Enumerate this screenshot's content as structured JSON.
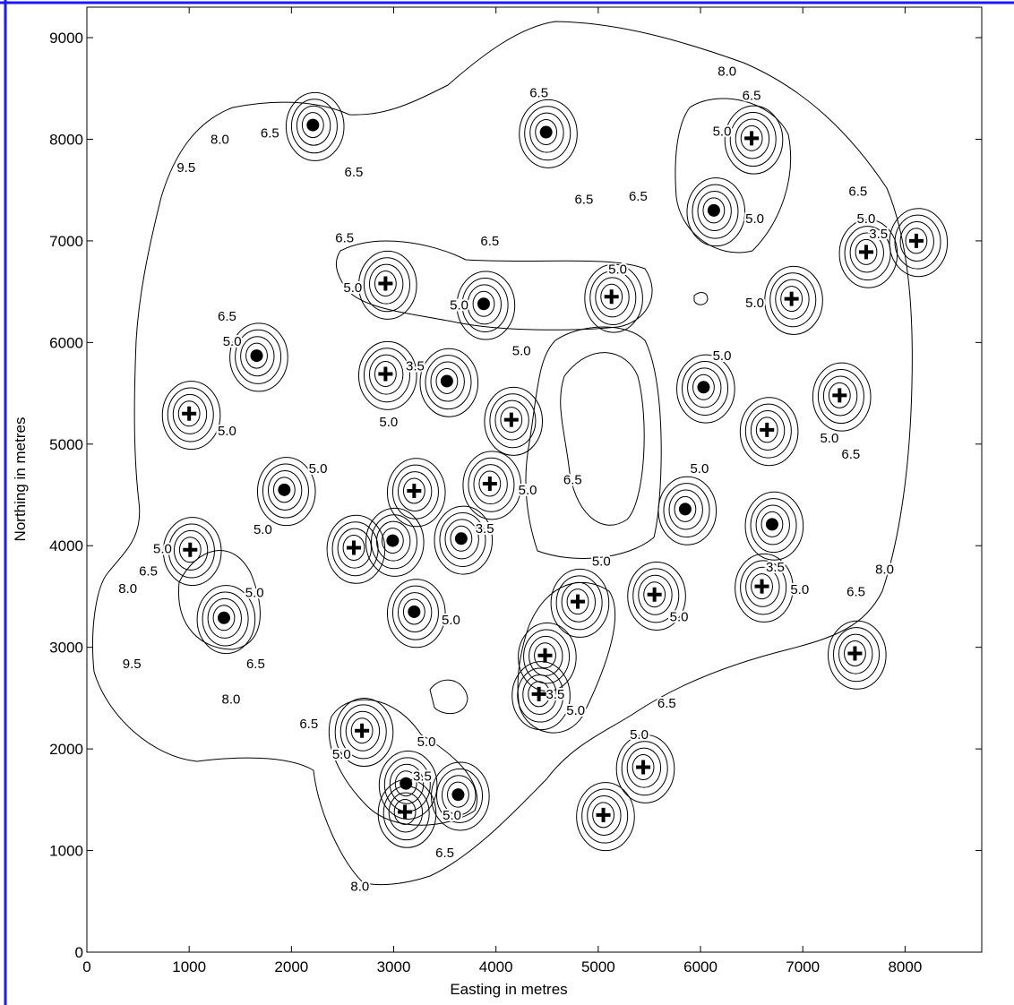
{
  "chart_data": {
    "type": "scatter",
    "xlabel": "Easting in metres",
    "ylabel": "Northing in metres",
    "xlim": [
      0,
      8750
    ],
    "ylim": [
      0,
      9300
    ],
    "xticks": [
      0,
      1000,
      2000,
      3000,
      4000,
      5000,
      6000,
      7000,
      8000
    ],
    "yticks": [
      0,
      1000,
      2000,
      3000,
      4000,
      5000,
      6000,
      7000,
      8000,
      9000
    ],
    "series": [
      {
        "marker": "circle",
        "color": "#000000",
        "x": [
          2210,
          4490,
          6130,
          3880,
          1660,
          3520,
          6030,
          1930,
          3660,
          6700,
          5850,
          2990,
          3200,
          1340,
          3120,
          3630
        ],
        "values": [
          8140,
          8070,
          7300,
          6380,
          5870,
          5620,
          5560,
          4550,
          4070,
          4210,
          4360,
          4050,
          3350,
          3290,
          1660,
          1550
        ]
      },
      {
        "marker": "cross",
        "color": "#000000",
        "x": [
          6500,
          7620,
          2920,
          5130,
          6890,
          2920,
          7360,
          1000,
          4150,
          6650,
          3940,
          3200,
          1010,
          2610,
          6600,
          4800,
          5550,
          4480,
          4420,
          8110,
          7510,
          2690,
          5440,
          5050,
          3110
        ],
        "values": [
          8010,
          6890,
          6580,
          6450,
          6430,
          5690,
          5480,
          5300,
          5240,
          5140,
          4610,
          4540,
          3960,
          3980,
          3600,
          3450,
          3520,
          2920,
          2540,
          7000,
          2940,
          2180,
          1820,
          1350,
          1380
        ]
      }
    ],
    "contour_labels": [
      {
        "label": "8.0",
        "x": 6260,
        "y": 8670
      },
      {
        "label": "6.5",
        "x": 4420,
        "y": 8460
      },
      {
        "label": "6.5",
        "x": 6500,
        "y": 8430
      },
      {
        "label": "5.0",
        "x": 6210,
        "y": 8080
      },
      {
        "label": "8.0",
        "x": 1300,
        "y": 8000
      },
      {
        "label": "6.5",
        "x": 1790,
        "y": 8060
      },
      {
        "label": "9.5",
        "x": 970,
        "y": 7720
      },
      {
        "label": "6.5",
        "x": 2610,
        "y": 7680
      },
      {
        "label": "6.5",
        "x": 4860,
        "y": 7410
      },
      {
        "label": "6.5",
        "x": 5390,
        "y": 7440
      },
      {
        "label": "6.5",
        "x": 7540,
        "y": 7490
      },
      {
        "label": "5.0",
        "x": 7620,
        "y": 7220
      },
      {
        "label": "3.5",
        "x": 7740,
        "y": 7070
      },
      {
        "label": "5.0",
        "x": 6530,
        "y": 7220
      },
      {
        "label": "6.5",
        "x": 2520,
        "y": 7030
      },
      {
        "label": "6.5",
        "x": 3940,
        "y": 7000
      },
      {
        "label": "5.0",
        "x": 2600,
        "y": 6540
      },
      {
        "label": "5.0",
        "x": 3640,
        "y": 6370
      },
      {
        "label": "5.0",
        "x": 5190,
        "y": 6720
      },
      {
        "label": "5.0",
        "x": 6530,
        "y": 6390
      },
      {
        "label": "5.0",
        "x": 4250,
        "y": 5920
      },
      {
        "label": "5.0",
        "x": 6210,
        "y": 5870
      },
      {
        "label": "6.5",
        "x": 1370,
        "y": 6260
      },
      {
        "label": "5.0",
        "x": 1420,
        "y": 6010
      },
      {
        "label": "3.5",
        "x": 3210,
        "y": 5770
      },
      {
        "label": "5.0",
        "x": 2950,
        "y": 5220
      },
      {
        "label": "5.0",
        "x": 1370,
        "y": 5130
      },
      {
        "label": "5.0",
        "x": 7260,
        "y": 5060
      },
      {
        "label": "6.5",
        "x": 7470,
        "y": 4900
      },
      {
        "label": "5.0",
        "x": 2260,
        "y": 4760
      },
      {
        "label": "5.0",
        "x": 5990,
        "y": 4760
      },
      {
        "label": "6.5",
        "x": 4750,
        "y": 4650
      },
      {
        "label": "5.0",
        "x": 4310,
        "y": 4550
      },
      {
        "label": "5.0",
        "x": 1720,
        "y": 4160
      },
      {
        "label": "3.5",
        "x": 3890,
        "y": 4170
      },
      {
        "label": "5.0",
        "x": 740,
        "y": 3970
      },
      {
        "label": "6.5",
        "x": 600,
        "y": 3750
      },
      {
        "label": "8.0",
        "x": 400,
        "y": 3580
      },
      {
        "label": "5.0",
        "x": 5030,
        "y": 3850
      },
      {
        "label": "8.0",
        "x": 7800,
        "y": 3770
      },
      {
        "label": "3.5",
        "x": 6730,
        "y": 3790
      },
      {
        "label": "5.0",
        "x": 6970,
        "y": 3570
      },
      {
        "label": "6.5",
        "x": 7520,
        "y": 3550
      },
      {
        "label": "5.0",
        "x": 1640,
        "y": 3540
      },
      {
        "label": "5.0",
        "x": 3560,
        "y": 3270
      },
      {
        "label": "5.0",
        "x": 5790,
        "y": 3300
      },
      {
        "label": "6.5",
        "x": 1650,
        "y": 2840
      },
      {
        "label": "9.5",
        "x": 440,
        "y": 2840
      },
      {
        "label": "8.0",
        "x": 1410,
        "y": 2490
      },
      {
        "label": "3.5",
        "x": 4580,
        "y": 2540
      },
      {
        "label": "6.5",
        "x": 5670,
        "y": 2450
      },
      {
        "label": "5.0",
        "x": 4780,
        "y": 2380
      },
      {
        "label": "6.5",
        "x": 2170,
        "y": 2250
      },
      {
        "label": "5.0",
        "x": 5400,
        "y": 2140
      },
      {
        "label": "5.0",
        "x": 3320,
        "y": 2070
      },
      {
        "label": "5.0",
        "x": 2490,
        "y": 1950
      },
      {
        "label": "3.5",
        "x": 3280,
        "y": 1730
      },
      {
        "label": "5.0",
        "x": 3570,
        "y": 1350
      },
      {
        "label": "6.5",
        "x": 3500,
        "y": 980
      },
      {
        "label": "8.0",
        "x": 2670,
        "y": 650
      }
    ]
  }
}
